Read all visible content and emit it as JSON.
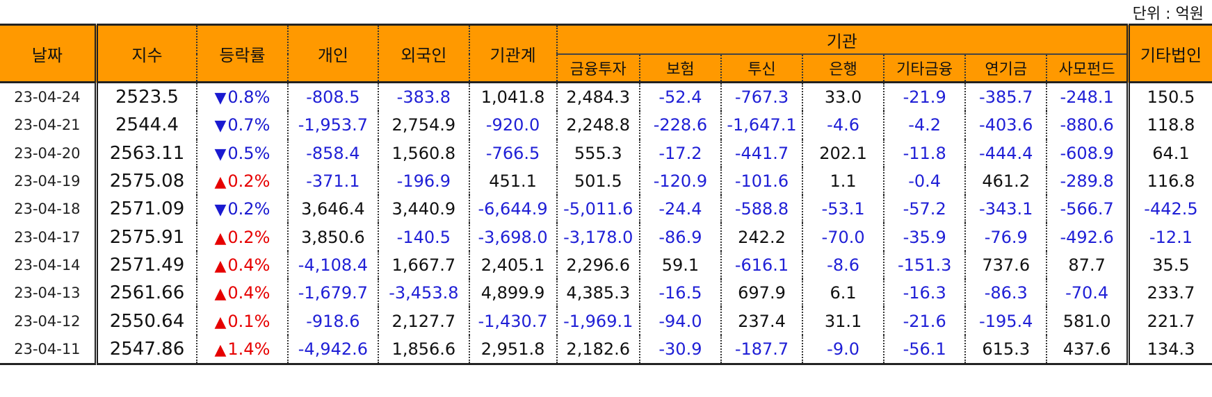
{
  "unit_label": "단위 : 억원",
  "headers": {
    "date": "날짜",
    "index": "지수",
    "change": "등락률",
    "individual": "개인",
    "foreign": "외국인",
    "inst_total": "기관계",
    "institution": "기관",
    "sub": [
      "금융투자",
      "보험",
      "투신",
      "은행",
      "기타금융",
      "연기금",
      "사모펀드"
    ],
    "other_corp": "기타법인"
  },
  "rows": [
    {
      "date": "23-04-24",
      "index": "2523.5",
      "dir": "down",
      "change": "0.8%",
      "vals": [
        "-808.5",
        "-383.8",
        "1,041.8",
        "2,484.3",
        "-52.4",
        "-767.3",
        "33.0",
        "-21.9",
        "-385.7",
        "-248.1",
        "150.5"
      ]
    },
    {
      "date": "23-04-21",
      "index": "2544.4",
      "dir": "down",
      "change": "0.7%",
      "vals": [
        "-1,953.7",
        "2,754.9",
        "-920.0",
        "2,248.8",
        "-228.6",
        "-1,647.1",
        "-4.6",
        "-4.2",
        "-403.6",
        "-880.6",
        "118.8"
      ]
    },
    {
      "date": "23-04-20",
      "index": "2563.11",
      "dir": "down",
      "change": "0.5%",
      "vals": [
        "-858.4",
        "1,560.8",
        "-766.5",
        "555.3",
        "-17.2",
        "-441.7",
        "202.1",
        "-11.8",
        "-444.4",
        "-608.9",
        "64.1"
      ]
    },
    {
      "date": "23-04-19",
      "index": "2575.08",
      "dir": "up",
      "change": "0.2%",
      "vals": [
        "-371.1",
        "-196.9",
        "451.1",
        "501.5",
        "-120.9",
        "-101.6",
        "1.1",
        "-0.4",
        "461.2",
        "-289.8",
        "116.8"
      ]
    },
    {
      "date": "23-04-18",
      "index": "2571.09",
      "dir": "down",
      "change": "0.2%",
      "vals": [
        "3,646.4",
        "3,440.9",
        "-6,644.9",
        "-5,011.6",
        "-24.4",
        "-588.8",
        "-53.1",
        "-57.2",
        "-343.1",
        "-566.7",
        "-442.5"
      ]
    },
    {
      "date": "23-04-17",
      "index": "2575.91",
      "dir": "up",
      "change": "0.2%",
      "vals": [
        "3,850.6",
        "-140.5",
        "-3,698.0",
        "-3,178.0",
        "-86.9",
        "242.2",
        "-70.0",
        "-35.9",
        "-76.9",
        "-492.6",
        "-12.1"
      ]
    },
    {
      "date": "23-04-14",
      "index": "2571.49",
      "dir": "up",
      "change": "0.4%",
      "vals": [
        "-4,108.4",
        "1,667.7",
        "2,405.1",
        "2,296.6",
        "59.1",
        "-616.1",
        "-8.6",
        "-151.3",
        "737.6",
        "87.7",
        "35.5"
      ]
    },
    {
      "date": "23-04-13",
      "index": "2561.66",
      "dir": "up",
      "change": "0.4%",
      "vals": [
        "-1,679.7",
        "-3,453.8",
        "4,899.9",
        "4,385.3",
        "-16.5",
        "697.9",
        "6.1",
        "-16.3",
        "-86.3",
        "-70.4",
        "233.7"
      ]
    },
    {
      "date": "23-04-12",
      "index": "2550.64",
      "dir": "up",
      "change": "0.1%",
      "vals": [
        "-918.6",
        "2,127.7",
        "-1,430.7",
        "-1,969.1",
        "-94.0",
        "237.4",
        "31.1",
        "-21.6",
        "-195.4",
        "581.0",
        "221.7"
      ]
    },
    {
      "date": "23-04-11",
      "index": "2547.86",
      "dir": "up",
      "change": "1.4%",
      "vals": [
        "-4,942.6",
        "1,856.6",
        "2,951.8",
        "2,182.6",
        "-30.9",
        "-187.7",
        "-9.0",
        "-56.1",
        "615.3",
        "437.6",
        "134.3"
      ]
    }
  ],
  "colors": {
    "header_bg": "#FF9900",
    "negative": "#1f1fd6",
    "up": "#e60000",
    "down": "#1a1ad0"
  }
}
